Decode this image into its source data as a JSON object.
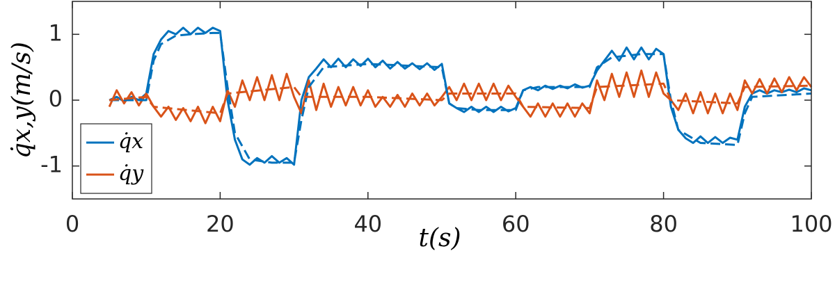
{
  "chart_data": {
    "type": "line",
    "xlabel": "t(s)",
    "ylabel": "q̇x,y(m/s)",
    "xlim": [
      0,
      100
    ],
    "xticks": [
      0,
      20,
      40,
      60,
      80,
      100
    ],
    "ylim": [
      -1.5,
      1.5
    ],
    "yticks": [
      -1,
      0,
      1
    ],
    "legend": "lower left",
    "x": [
      5,
      6,
      7,
      8,
      9,
      10,
      11,
      12,
      13,
      14,
      15,
      16,
      17,
      18,
      19,
      20,
      21,
      22,
      23,
      24,
      25,
      26,
      27,
      28,
      29,
      30,
      31,
      32,
      33,
      34,
      35,
      36,
      37,
      38,
      39,
      40,
      41,
      42,
      43,
      44,
      45,
      46,
      47,
      48,
      49,
      50,
      51,
      52,
      53,
      54,
      55,
      56,
      57,
      58,
      59,
      60,
      61,
      62,
      63,
      64,
      65,
      66,
      67,
      68,
      69,
      70,
      71,
      72,
      73,
      74,
      75,
      76,
      77,
      78,
      79,
      80,
      81,
      82,
      83,
      84,
      85,
      86,
      87,
      88,
      89,
      90,
      91,
      92,
      93,
      94,
      95,
      96,
      97,
      98,
      99,
      100
    ],
    "series": [
      {
        "name": "q̇x",
        "color": "#0072bd",
        "dash": false,
        "values": [
          0,
          0.05,
          -0.02,
          0.05,
          0,
          0.1,
          0.7,
          0.92,
          1.05,
          1.0,
          1.1,
          1.0,
          1.1,
          1.02,
          1.1,
          1.05,
          0.0,
          -0.6,
          -0.9,
          -0.98,
          -0.88,
          -0.95,
          -0.85,
          -0.95,
          -0.88,
          -0.98,
          0.0,
          0.35,
          0.48,
          0.62,
          0.5,
          0.63,
          0.5,
          0.62,
          0.52,
          0.63,
          0.5,
          0.6,
          0.48,
          0.58,
          0.48,
          0.56,
          0.47,
          0.56,
          0.46,
          0.55,
          -0.05,
          -0.12,
          -0.18,
          -0.1,
          -0.18,
          -0.1,
          -0.18,
          -0.1,
          -0.17,
          -0.12,
          0.15,
          0.2,
          0.15,
          0.22,
          0.17,
          0.22,
          0.18,
          0.24,
          0.19,
          0.22,
          0.45,
          0.6,
          0.75,
          0.6,
          0.8,
          0.62,
          0.8,
          0.62,
          0.78,
          0.7,
          -0.1,
          -0.45,
          -0.58,
          -0.65,
          -0.55,
          -0.65,
          -0.56,
          -0.65,
          -0.57,
          -0.6,
          -0.1,
          0.1,
          0.15,
          0.1,
          0.15,
          0.12,
          0.16,
          0.12,
          0.18,
          0.15
        ]
      },
      {
        "name": "q̇y",
        "color": "#d95319",
        "dash": false,
        "values": [
          -0.1,
          0.15,
          -0.05,
          0.12,
          -0.08,
          0.1,
          -0.1,
          -0.25,
          -0.1,
          -0.3,
          -0.12,
          -0.32,
          -0.1,
          -0.35,
          -0.1,
          -0.32,
          0.15,
          -0.1,
          0.3,
          0.0,
          0.35,
          0.0,
          0.38,
          0.0,
          0.4,
          0.05,
          -0.2,
          0.3,
          -0.15,
          0.25,
          -0.1,
          0.2,
          -0.08,
          0.2,
          -0.08,
          0.15,
          -0.1,
          0.05,
          -0.1,
          0.08,
          -0.1,
          0.1,
          -0.08,
          0.1,
          -0.08,
          0.05,
          0.2,
          0.0,
          0.25,
          0.0,
          0.25,
          0.0,
          0.25,
          0.0,
          0.22,
          0.05,
          -0.1,
          -0.25,
          -0.05,
          -0.25,
          -0.05,
          -0.25,
          -0.05,
          -0.25,
          -0.05,
          -0.2,
          0.3,
          0.0,
          0.4,
          0.05,
          0.42,
          0.05,
          0.45,
          0.05,
          0.42,
          0.1,
          0.0,
          -0.15,
          0.1,
          -0.2,
          0.12,
          -0.2,
          0.1,
          -0.2,
          0.1,
          -0.15,
          0.3,
          0.1,
          0.32,
          0.1,
          0.33,
          0.12,
          0.35,
          0.15,
          0.35,
          0.2
        ]
      },
      {
        "color": "#0072bd",
        "dash": true,
        "x": [
          5,
          10,
          11,
          12,
          14,
          16,
          19,
          20,
          21,
          22,
          24,
          27,
          30,
          31,
          32,
          34,
          40,
          50,
          51,
          52,
          55,
          60,
          61,
          63,
          70,
          71,
          73,
          77,
          80,
          81,
          82,
          85,
          90,
          91,
          92,
          100
        ],
        "values": [
          0,
          0,
          0.6,
          0.85,
          0.98,
          1.0,
          1.02,
          1.02,
          0.2,
          -0.5,
          -0.9,
          -0.95,
          -0.95,
          -0.3,
          0.2,
          0.5,
          0.55,
          0.5,
          -0.05,
          -0.12,
          -0.15,
          -0.15,
          0.15,
          0.2,
          0.2,
          0.5,
          0.65,
          0.7,
          0.7,
          0.0,
          -0.45,
          -0.65,
          -0.68,
          -0.2,
          0.05,
          0.1
        ]
      },
      {
        "color": "#d95319",
        "dash": true,
        "x": [
          5,
          10,
          11,
          20,
          21,
          30,
          31,
          40,
          50,
          51,
          60,
          61,
          70,
          71,
          80,
          81,
          90,
          91,
          100
        ],
        "values": [
          0,
          0.05,
          -0.1,
          -0.2,
          0.1,
          0.2,
          0.05,
          0.05,
          0.0,
          0.1,
          0.1,
          -0.1,
          -0.12,
          0.2,
          0.25,
          0.0,
          -0.05,
          0.2,
          0.22
        ]
      }
    ]
  }
}
